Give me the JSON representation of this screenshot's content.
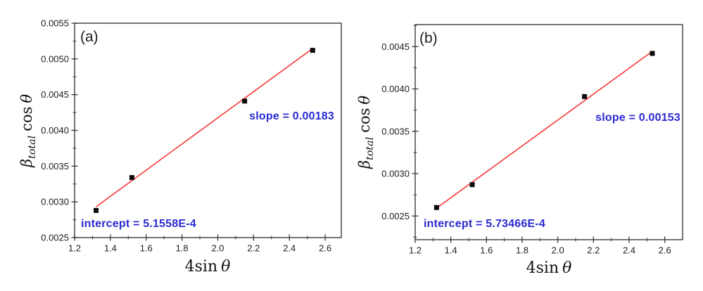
{
  "colors": {
    "background": "#ffffff",
    "marker": "#0a0a0a",
    "fit_line": "#f74341",
    "annotation_text": "#2a2ad2",
    "axis": "#3a3a3a",
    "tick_label": "#1c1c1c"
  },
  "chart_data": [
    {
      "type": "scatter",
      "panel_label": "(a)",
      "xlabel": {
        "prefix": "4sin",
        "argument": "θ"
      },
      "ylabel": {
        "symbol": "β",
        "subscript": "total",
        "operator": "cos",
        "argument": "θ"
      },
      "x": [
        1.32,
        1.52,
        2.15,
        2.53
      ],
      "y": [
        0.00288,
        0.00334,
        0.00441,
        0.00512
      ],
      "fit": {
        "slope": 0.00183,
        "intercept": 0.00051558,
        "x_start": 1.32,
        "x_end": 2.53
      },
      "xlim": [
        1.2,
        2.69
      ],
      "ylim": [
        0.0025,
        0.0055
      ],
      "grid": false,
      "legend": "none",
      "xticks": {
        "values": [
          1.2,
          1.4,
          1.6,
          1.8,
          2.0,
          2.2,
          2.4,
          2.6
        ],
        "labels": [
          "1.2",
          "1.4",
          "1.6",
          "1.8",
          "2.0",
          "2.2",
          "2.4",
          "2.6"
        ]
      },
      "yticks": {
        "values": [
          0.0025,
          0.003,
          0.0035,
          0.004,
          0.0045,
          0.005,
          0.0055
        ],
        "labels": [
          "0.0025",
          "0.0030",
          "0.0035",
          "0.0040",
          "0.0045",
          "0.0050",
          "0.0055"
        ]
      },
      "annotations": {
        "slope": "slope = 0.00183",
        "intercept": "intercept = 5.1558E-4"
      }
    },
    {
      "type": "scatter",
      "panel_label": "(b)",
      "xlabel": {
        "prefix": "4sin",
        "argument": "θ"
      },
      "ylabel": {
        "symbol": "β",
        "subscript": "total",
        "operator": "cos",
        "argument": "θ"
      },
      "x": [
        1.32,
        1.52,
        2.15,
        2.53
      ],
      "y": [
        0.0026,
        0.00287,
        0.00391,
        0.00442
      ],
      "fit": {
        "slope": 0.00153,
        "intercept": 0.000573466,
        "x_start": 1.32,
        "x_end": 2.53
      },
      "xlim": [
        1.2,
        2.7
      ],
      "ylim": [
        0.00222,
        0.00476
      ],
      "grid": false,
      "legend": "none",
      "xticks": {
        "values": [
          1.2,
          1.4,
          1.6,
          1.8,
          2.0,
          2.2,
          2.4,
          2.6
        ],
        "labels": [
          "1.2",
          "1.4",
          "1.6",
          "1.8",
          "2.0",
          "2.2",
          "2.4",
          "2.6"
        ]
      },
      "yticks": {
        "values": [
          0.0025,
          0.003,
          0.0035,
          0.004,
          0.0045
        ],
        "labels": [
          "0.0025",
          "0.0030",
          "0.0035",
          "0.0040",
          "0.0045"
        ]
      },
      "annotations": {
        "slope": "slope = 0.00153",
        "intercept": "intercept = 5.73466E-4"
      }
    }
  ]
}
